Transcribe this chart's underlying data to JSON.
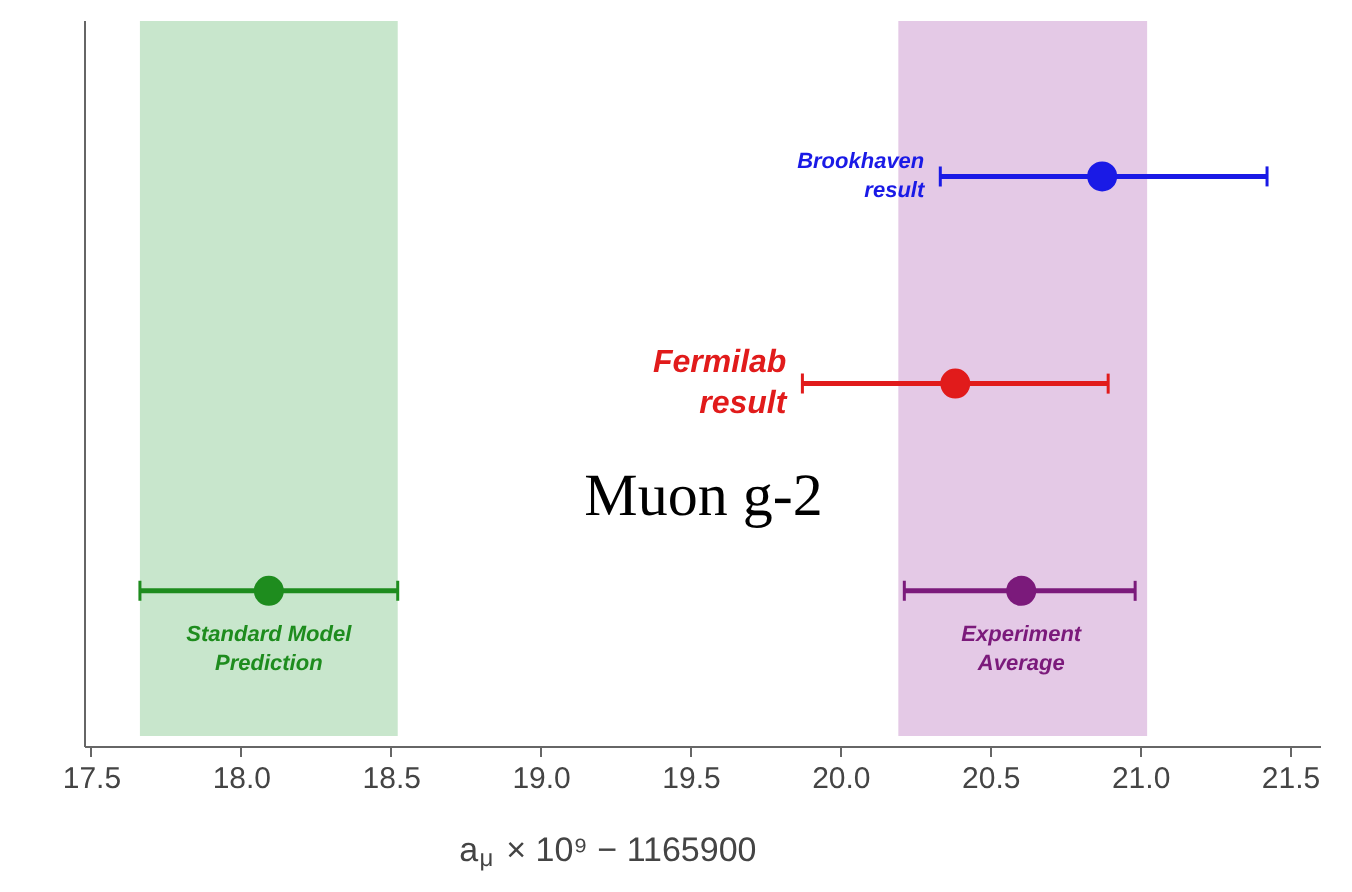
{
  "chart_data": {
    "type": "scatter",
    "orientation": "horizontal",
    "xlabel": "a$_{μ}$ × 10⁹ − 1165900",
    "annotations": [
      "Muon g-2"
    ],
    "categories": [
      null,
      null,
      null
    ],
    "xlim": [
      17.48,
      21.6
    ],
    "xticks": [
      {
        "value": 17.5,
        "label": "17.5"
      },
      {
        "value": 18.0,
        "label": "18.0"
      },
      {
        "value": 18.5,
        "label": "18.5"
      },
      {
        "value": 19.0,
        "label": "19.0"
      },
      {
        "value": 19.5,
        "label": "19.5"
      },
      {
        "value": 20.0,
        "label": "20.0"
      },
      {
        "value": 20.5,
        "label": "20.5"
      },
      {
        "value": 21.0,
        "label": "21.0"
      },
      {
        "value": 21.5,
        "label": "21.5"
      }
    ],
    "tick_labels": "x",
    "grid": false,
    "marker": "circle",
    "bands": [
      {
        "axis": "x",
        "from": 17.66,
        "to": 18.52,
        "color": "#c8e6cc"
      },
      {
        "axis": "x",
        "from": 20.19,
        "to": 21.02,
        "color": "#e4c9e6"
      }
    ],
    "series": [
      {
        "name": "Brookhaven\nresult",
        "color": "#1a1ae6",
        "values": [
          20.87,
          null,
          null
        ],
        "errors": [
          [
            20.33,
            21.42
          ],
          null,
          null
        ]
      },
      {
        "name": "Fermilab\nresult",
        "color": "#e11b1b",
        "values": [
          null,
          20.38,
          null
        ],
        "errors": [
          null,
          [
            19.87,
            20.89
          ],
          null
        ]
      },
      {
        "name": "Standard Model\nPrediction",
        "color": "#1e8c1e",
        "values": [
          null,
          null,
          18.09
        ],
        "errors": [
          null,
          null,
          [
            17.66,
            18.52
          ]
        ]
      },
      {
        "name": "Experiment\nAverage",
        "color": "#7b1a7b",
        "values": [
          null,
          null,
          20.6
        ],
        "errors": [
          null,
          null,
          [
            20.21,
            20.98
          ]
        ]
      }
    ]
  }
}
